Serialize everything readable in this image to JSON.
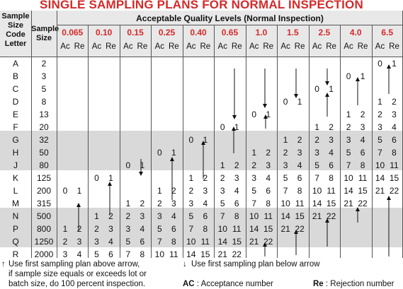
{
  "title": "SINGLE SAMPLING PLANS FOR NORMAL INSPECTION",
  "headers": {
    "code_letter": [
      "Sample",
      "Size",
      "Code",
      "Letter"
    ],
    "sample_size": [
      "Sample",
      "Size"
    ],
    "aql_title": "Acceptable Quality Levels (Normal Inspection)",
    "aql_levels": [
      "0.065",
      "0.10",
      "0.15",
      "0.25",
      "0.40",
      "0.65",
      "1.0",
      "1.5",
      "2.5",
      "4.0",
      "6.5"
    ],
    "ac": "Ac",
    "re": "Re"
  },
  "rows": [
    {
      "letter": "A",
      "size": "2",
      "cells": [
        null,
        null,
        null,
        null,
        null,
        null,
        null,
        null,
        null,
        null,
        [
          "0",
          "1"
        ]
      ]
    },
    {
      "letter": "B",
      "size": "3",
      "cells": [
        null,
        null,
        null,
        null,
        null,
        null,
        null,
        null,
        null,
        [
          "0",
          "1"
        ],
        null
      ]
    },
    {
      "letter": "C",
      "size": "5",
      "cells": [
        null,
        null,
        null,
        null,
        null,
        null,
        null,
        null,
        [
          "0",
          "1"
        ],
        null,
        null
      ]
    },
    {
      "letter": "D",
      "size": "8",
      "cells": [
        null,
        null,
        null,
        null,
        null,
        null,
        null,
        [
          "0",
          "1"
        ],
        null,
        null,
        [
          "1",
          "2"
        ]
      ]
    },
    {
      "letter": "E",
      "size": "13",
      "cells": [
        null,
        null,
        null,
        null,
        null,
        null,
        [
          "0",
          "1"
        ],
        null,
        null,
        [
          "1",
          "2"
        ],
        [
          "2",
          "3"
        ]
      ]
    },
    {
      "letter": "F",
      "size": "20",
      "cells": [
        null,
        null,
        null,
        null,
        null,
        [
          "0",
          "1"
        ],
        null,
        null,
        [
          "1",
          "2"
        ],
        [
          "2",
          "3"
        ],
        [
          "3",
          "4"
        ]
      ]
    },
    {
      "letter": "G",
      "size": "32",
      "cells": [
        null,
        null,
        null,
        null,
        [
          "0",
          "1"
        ],
        null,
        null,
        [
          "1",
          "2"
        ],
        [
          "2",
          "3"
        ],
        [
          "3",
          "4"
        ],
        [
          "5",
          "6"
        ]
      ]
    },
    {
      "letter": "H",
      "size": "50",
      "cells": [
        null,
        null,
        null,
        [
          "0",
          "1"
        ],
        null,
        null,
        [
          "1",
          "2"
        ],
        [
          "2",
          "3"
        ],
        [
          "3",
          "4"
        ],
        [
          "5",
          "6"
        ],
        [
          "7",
          "8"
        ]
      ]
    },
    {
      "letter": "J",
      "size": "80",
      "cells": [
        null,
        null,
        [
          "0",
          "1"
        ],
        null,
        null,
        [
          "1",
          "2"
        ],
        [
          "2",
          "3"
        ],
        [
          "3",
          "4"
        ],
        [
          "5",
          "6"
        ],
        [
          "7",
          "8"
        ],
        [
          "10",
          "11"
        ]
      ]
    },
    {
      "letter": "K",
      "size": "125",
      "cells": [
        null,
        [
          "0",
          "1"
        ],
        null,
        null,
        [
          "1",
          "2"
        ],
        [
          "2",
          "3"
        ],
        [
          "3",
          "4"
        ],
        [
          "5",
          "6"
        ],
        [
          "7",
          "8"
        ],
        [
          "10",
          "11"
        ],
        [
          "14",
          "15"
        ]
      ]
    },
    {
      "letter": "L",
      "size": "200",
      "cells": [
        [
          "0",
          "1"
        ],
        null,
        null,
        [
          "1",
          "2"
        ],
        [
          "2",
          "3"
        ],
        [
          "3",
          "4"
        ],
        [
          "5",
          "6"
        ],
        [
          "7",
          "8"
        ],
        [
          "10",
          "11"
        ],
        [
          "14",
          "15"
        ],
        [
          "21",
          "22"
        ]
      ]
    },
    {
      "letter": "M",
      "size": "315",
      "cells": [
        null,
        null,
        [
          "1",
          "2"
        ],
        [
          "2",
          "3"
        ],
        [
          "3",
          "4"
        ],
        [
          "5",
          "6"
        ],
        [
          "7",
          "8"
        ],
        [
          "10",
          "11"
        ],
        [
          "14",
          "15"
        ],
        [
          "21",
          "22"
        ],
        null
      ]
    },
    {
      "letter": "N",
      "size": "500",
      "cells": [
        null,
        [
          "1",
          "2"
        ],
        [
          "2",
          "3"
        ],
        [
          "3",
          "4"
        ],
        [
          "5",
          "6"
        ],
        [
          "7",
          "8"
        ],
        [
          "10",
          "11"
        ],
        [
          "14",
          "15"
        ],
        [
          "21",
          "22"
        ],
        null,
        null
      ]
    },
    {
      "letter": "P",
      "size": "800",
      "cells": [
        [
          "1",
          "2"
        ],
        [
          "2",
          "3"
        ],
        [
          "3",
          "4"
        ],
        [
          "5",
          "6"
        ],
        [
          "7",
          "8"
        ],
        [
          "10",
          "11"
        ],
        [
          "14",
          "15"
        ],
        [
          "21",
          "22"
        ],
        null,
        null,
        null
      ]
    },
    {
      "letter": "Q",
      "size": "1250",
      "cells": [
        [
          "2",
          "3"
        ],
        [
          "3",
          "4"
        ],
        [
          "5",
          "6"
        ],
        [
          "7",
          "8"
        ],
        [
          "10",
          "11"
        ],
        [
          "14",
          "15"
        ],
        [
          "21",
          "22"
        ],
        null,
        null,
        null,
        null
      ]
    },
    {
      "letter": "R",
      "size": "2000",
      "cells": [
        [
          "3",
          "4"
        ],
        [
          "5",
          "6"
        ],
        [
          "7",
          "8"
        ],
        [
          "10",
          "11"
        ],
        [
          "14",
          "15"
        ],
        [
          "21",
          "22"
        ],
        null,
        null,
        null,
        null,
        null
      ]
    }
  ],
  "notes": {
    "up_arrow": "Use first sampling plan above arrow, if sample size equals or exceeds lot or batch size, do 100 percent inspection.",
    "up_arrow_lines": [
      "Use first sampling plan above arrow,",
      "if sample size equals or exceeds lot or",
      "batch size, do 100 percent inspection."
    ],
    "down_arrow": "Use first sampling plan below arrow",
    "ac_abbr": "AC",
    "ac_def": ": Acceptance number",
    "re_abbr": "Re",
    "re_def": ": Rejection number"
  },
  "colors": {
    "accent": "#d42a2a",
    "band": "#d9d9d9"
  }
}
